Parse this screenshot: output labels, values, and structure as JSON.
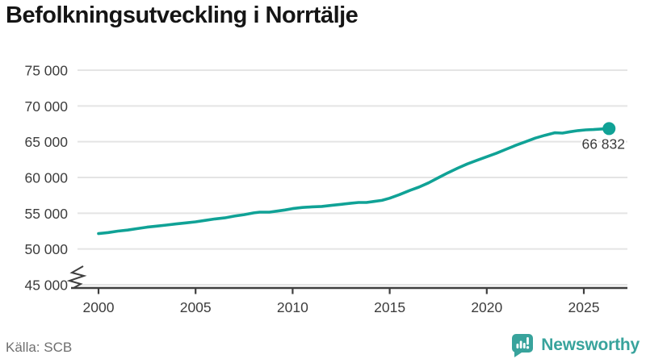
{
  "title": "Befolkningsutveckling i Norrtälje",
  "source": "Källa: SCB",
  "branding": {
    "name": "Newsworthy"
  },
  "colors": {
    "line": "#10a296",
    "grid": "#e4e4e4",
    "axis": "#3f3f3f",
    "tick_text": "#3d3d3d",
    "label_text": "#3a3a3a",
    "muted_text": "#6f6f6f",
    "brand": "#38a39c",
    "title_text": "#151515"
  },
  "chart_data": {
    "type": "line",
    "title": "Befolkningsutveckling i Norrtälje",
    "xlabel": "",
    "ylabel": "",
    "grid": "horizontal",
    "legend": "none",
    "axis_break_below": 45000,
    "xlim": [
      1998.6,
      2027.2
    ],
    "ylim": [
      45000,
      77000
    ],
    "x_ticks": [
      2000,
      2005,
      2010,
      2015,
      2020,
      2025
    ],
    "x_tick_labels": [
      "2000",
      "2005",
      "2010",
      "2015",
      "2020",
      "2025"
    ],
    "y_ticks": [
      75000,
      70000,
      65000,
      60000,
      55000,
      50000,
      45000
    ],
    "y_tick_labels": [
      "75 000",
      "70 000",
      "65 000",
      "60 000",
      "55 000",
      "50 000",
      "45 000"
    ],
    "end_label": "66 832",
    "end_value": 66832,
    "series": [
      {
        "name": "Befolkning",
        "x": [
          2000.0,
          2000.5,
          2001.0,
          2001.5,
          2002.0,
          2002.5,
          2003.0,
          2003.5,
          2004.0,
          2004.5,
          2005.0,
          2005.5,
          2006.0,
          2006.5,
          2007.0,
          2007.5,
          2008.0,
          2008.3,
          2008.8,
          2009.2,
          2009.6,
          2010.0,
          2010.5,
          2011.0,
          2011.5,
          2012.0,
          2012.5,
          2013.0,
          2013.4,
          2013.8,
          2014.2,
          2014.6,
          2015.0,
          2015.5,
          2016.0,
          2016.5,
          2017.0,
          2017.5,
          2018.0,
          2018.5,
          2019.0,
          2019.5,
          2020.0,
          2020.5,
          2021.0,
          2021.5,
          2022.0,
          2022.5,
          2023.0,
          2023.5,
          2023.9,
          2024.3,
          2024.7,
          2025.1,
          2025.5,
          2025.9,
          2026.3
        ],
        "y": [
          52150,
          52300,
          52500,
          52650,
          52850,
          53050,
          53200,
          53350,
          53500,
          53650,
          53800,
          54000,
          54200,
          54350,
          54600,
          54800,
          55050,
          55150,
          55150,
          55300,
          55450,
          55650,
          55800,
          55900,
          55950,
          56100,
          56250,
          56400,
          56500,
          56500,
          56650,
          56800,
          57100,
          57600,
          58150,
          58650,
          59250,
          59950,
          60650,
          61300,
          61900,
          62400,
          62900,
          63400,
          63950,
          64500,
          65000,
          65500,
          65900,
          66250,
          66200,
          66400,
          66550,
          66650,
          66700,
          66780,
          66832
        ]
      }
    ]
  }
}
